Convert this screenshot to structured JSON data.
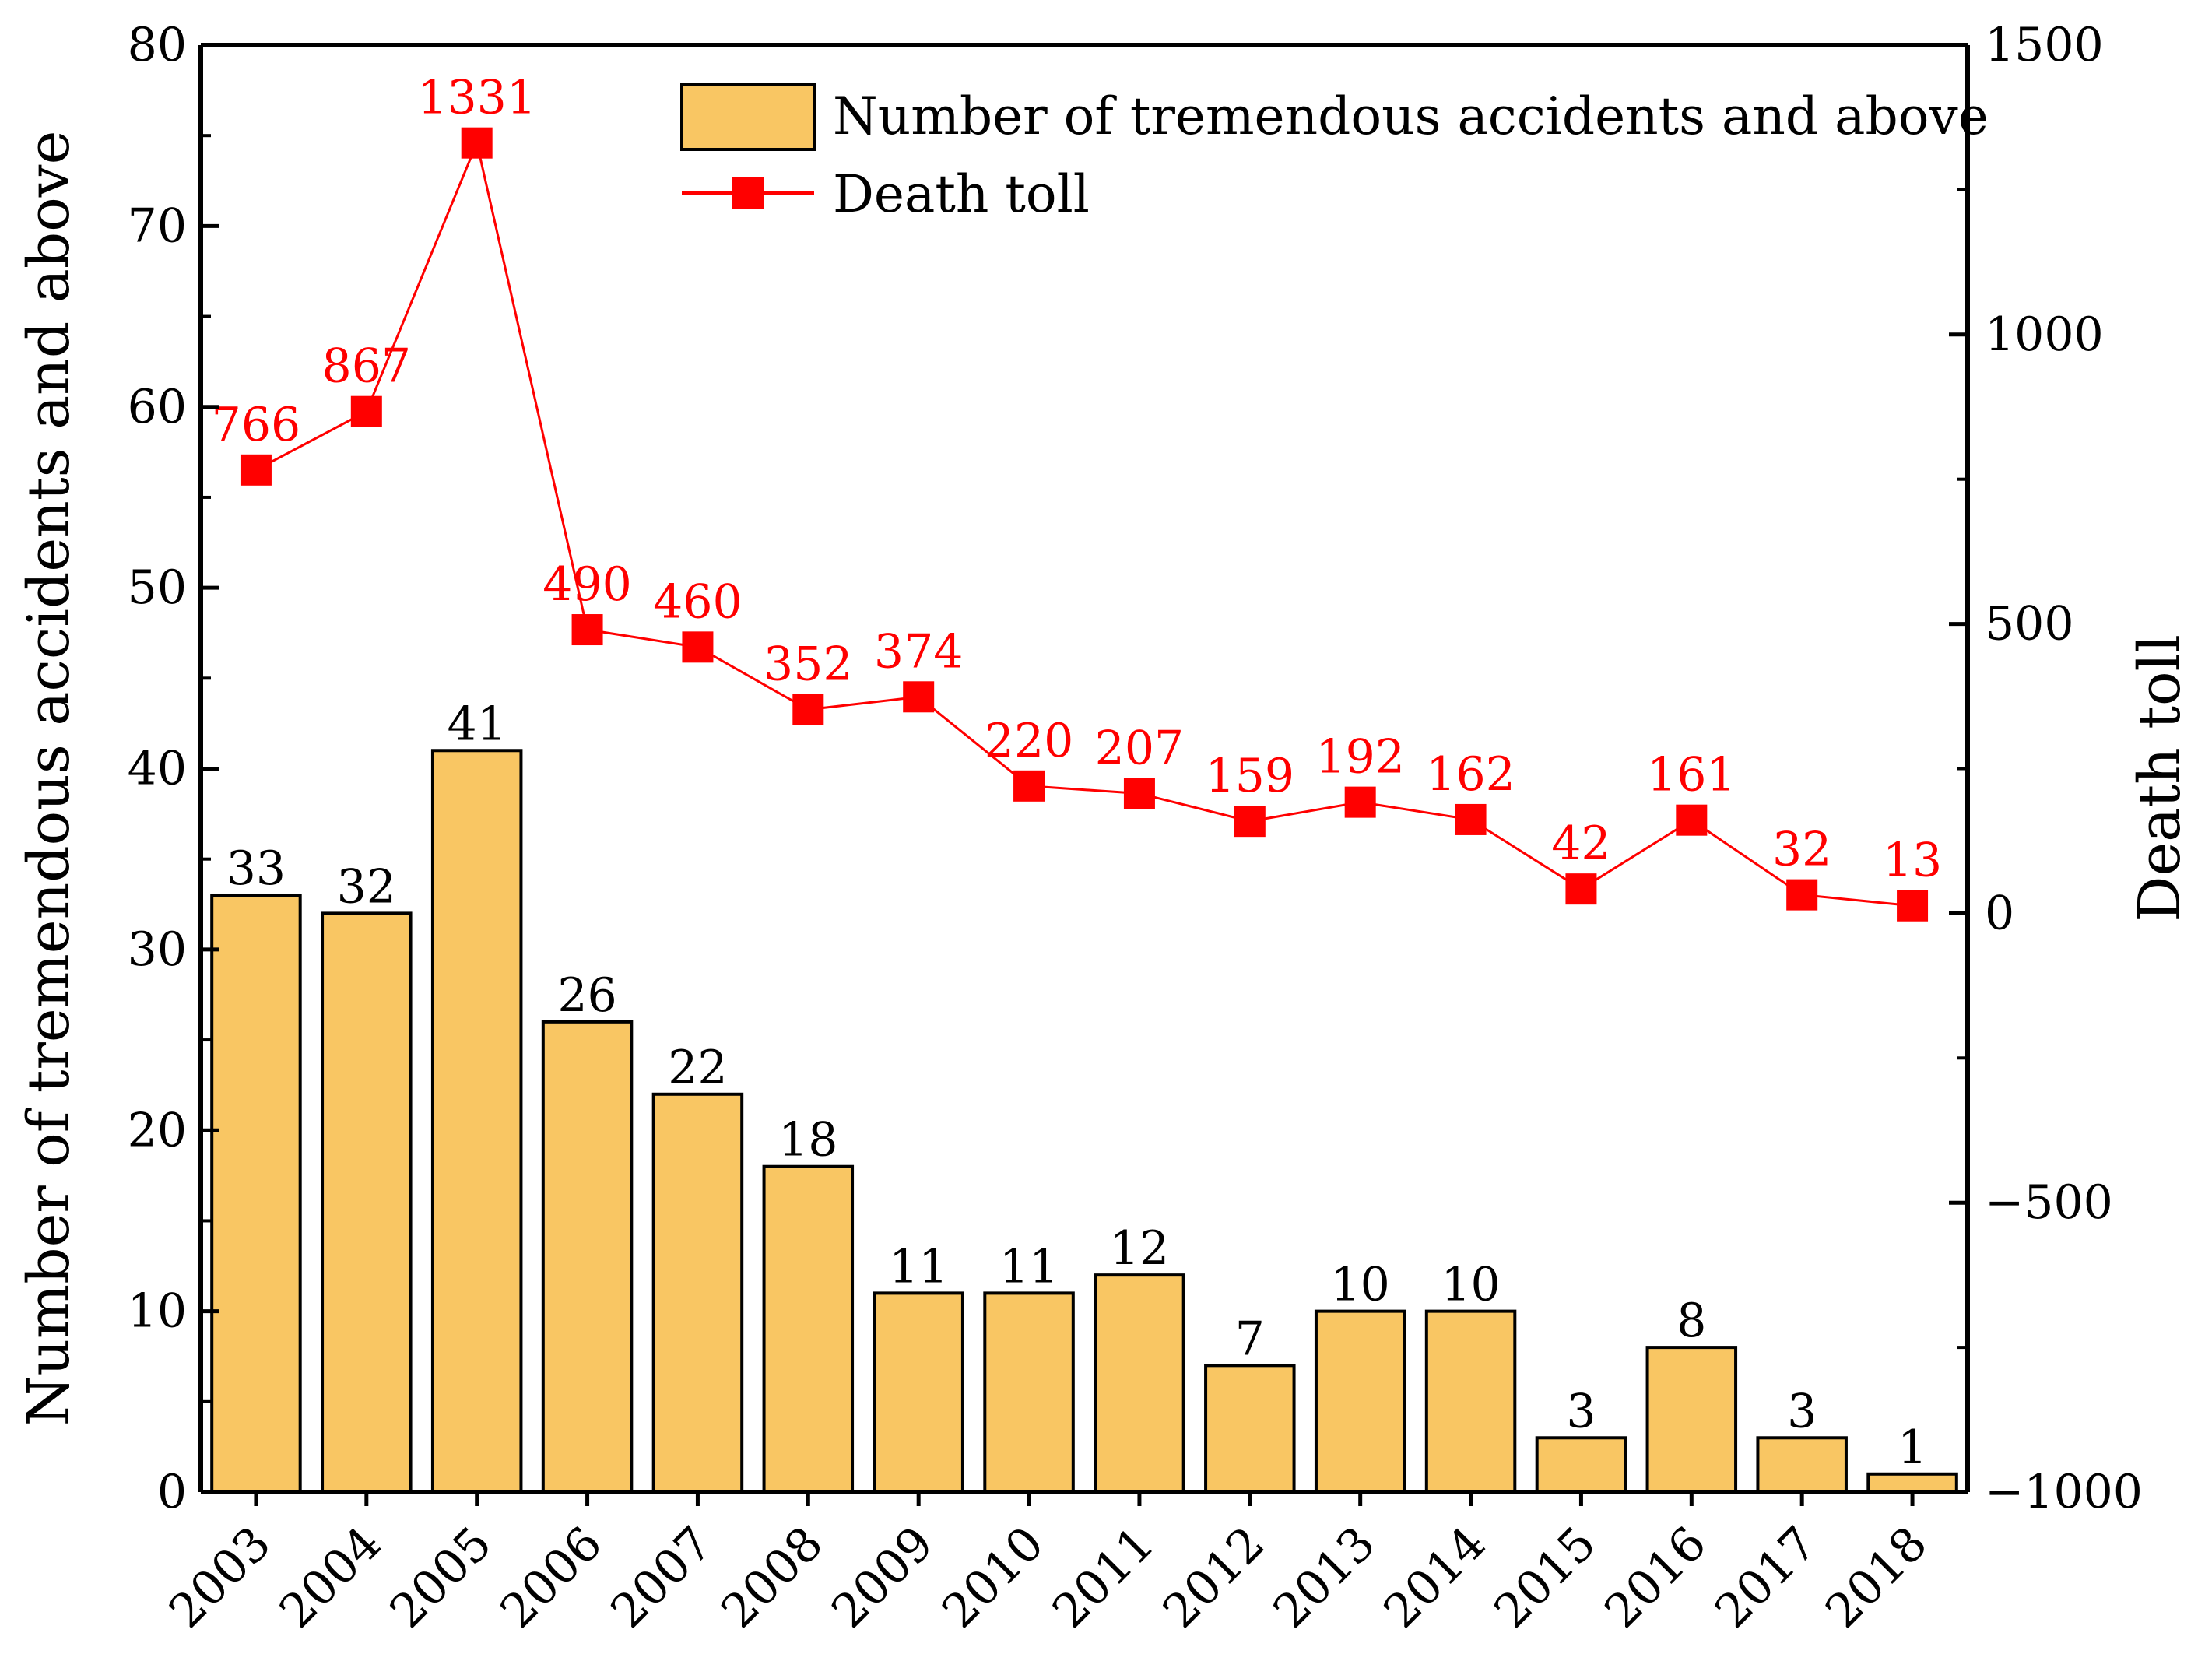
{
  "chart_data": {
    "type": "bar+line",
    "categories": [
      "2003",
      "2004",
      "2005",
      "2006",
      "2007",
      "2008",
      "2009",
      "2010",
      "2011",
      "2012",
      "2013",
      "2014",
      "2015",
      "2016",
      "2017",
      "2018"
    ],
    "series": [
      {
        "name": "Number of tremendous accidents and above",
        "type": "bar",
        "axis": "left",
        "values": [
          33,
          32,
          41,
          26,
          22,
          18,
          11,
          11,
          12,
          7,
          10,
          10,
          3,
          8,
          3,
          1
        ],
        "labels": [
          "33",
          "32",
          "41",
          "26",
          "22",
          "18",
          "11",
          "11",
          "12",
          "7",
          "10",
          "10",
          "3",
          "8",
          "3",
          "1"
        ]
      },
      {
        "name": "Death toll",
        "type": "line",
        "axis": "right",
        "values": [
          766,
          867,
          1331,
          490,
          460,
          352,
          374,
          220,
          207,
          159,
          192,
          162,
          42,
          161,
          32,
          13
        ],
        "labels": [
          "766",
          "867",
          "1331",
          "490",
          "460",
          "352",
          "374",
          "220",
          "207",
          "159",
          "192",
          "162",
          "42",
          "161",
          "32",
          "13"
        ]
      }
    ],
    "y_left": {
      "label": "Number of tremendous accidents and above",
      "ylim": [
        0,
        80
      ],
      "ticks": [
        0,
        10,
        20,
        30,
        40,
        50,
        60,
        70,
        80
      ],
      "tick_labels": [
        "0",
        "10",
        "20",
        "30",
        "40",
        "50",
        "60",
        "70",
        "80"
      ]
    },
    "y_right": {
      "label": "Death toll",
      "ylim": [
        -1000,
        1500
      ],
      "ticks": [
        -1000,
        -500,
        0,
        500,
        1000,
        1500
      ],
      "tick_labels": [
        "−1000",
        "−500",
        "0",
        "500",
        "1000",
        "1500"
      ]
    },
    "legend": {
      "placement": "top-right",
      "entries": [
        "Number of tremendous accidents and above",
        "Death toll"
      ]
    },
    "colors": {
      "bar_fill": "#f9c663",
      "bar_stroke": "#000000",
      "line": "#ff0000",
      "marker": "#ff0000",
      "axis": "#000000"
    }
  }
}
